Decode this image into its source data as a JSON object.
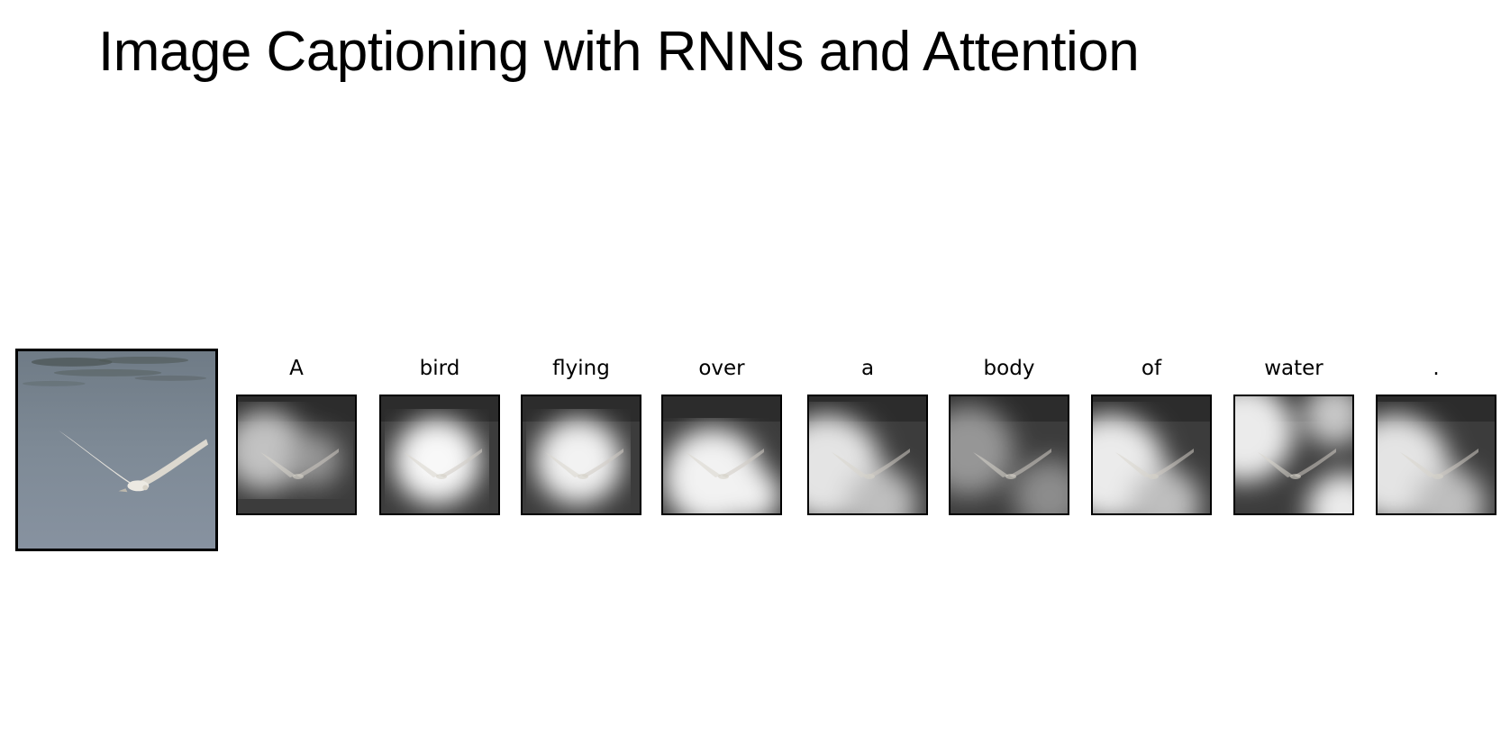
{
  "title": "Image Captioning with RNNs and Attention",
  "source_image": {
    "subject": "seagull flying over water",
    "colors": {
      "water": "#7b8795",
      "water_dark": "#4f5a62",
      "bird": "#e8e4dc"
    }
  },
  "caption_words": [
    "A",
    "bird",
    "flying",
    "over",
    "a",
    "body",
    "of",
    "water",
    "."
  ],
  "attention_maps": [
    {
      "word": "A",
      "focus": "left-wing",
      "brightness": 0.55
    },
    {
      "word": "bird",
      "focus": "bird-body",
      "brightness": 0.95
    },
    {
      "word": "flying",
      "focus": "bird-body",
      "brightness": 0.9
    },
    {
      "word": "over",
      "focus": "below-bird",
      "brightness": 0.9
    },
    {
      "word": "a",
      "focus": "left-water",
      "brightness": 0.8
    },
    {
      "word": "body",
      "focus": "diffuse",
      "brightness": 0.4
    },
    {
      "word": "of",
      "focus": "left-water",
      "brightness": 0.85
    },
    {
      "word": "water",
      "focus": "corners",
      "brightness": 0.85
    },
    {
      "word": ".",
      "focus": "left-water",
      "brightness": 0.8
    }
  ]
}
